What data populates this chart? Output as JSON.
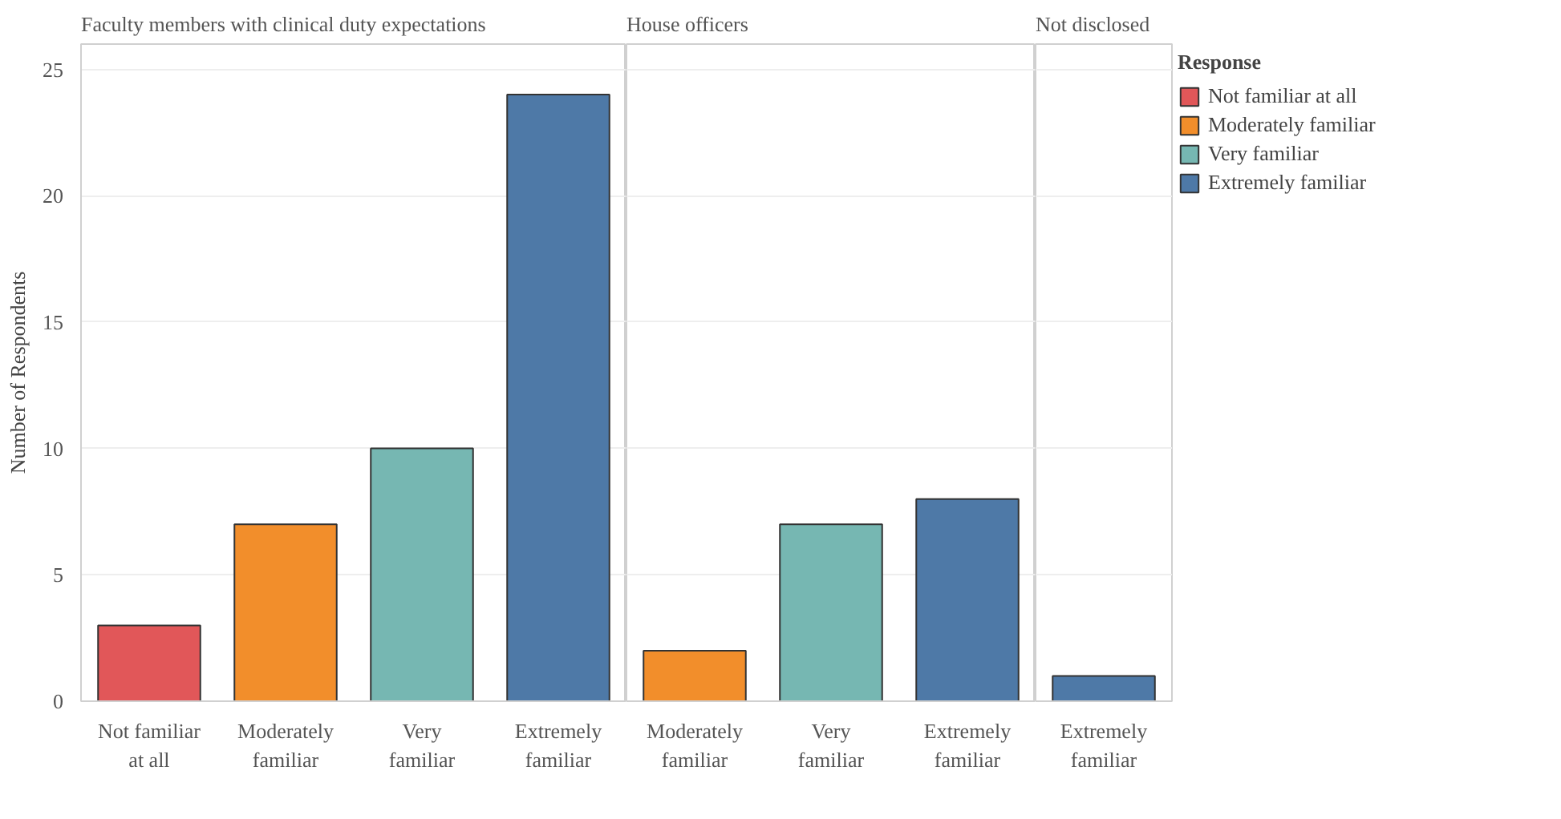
{
  "chart_data": [
    {
      "type": "bar",
      "title": "Faculty members with clinical duty expectations",
      "ylabel": "Number of Respondents",
      "categories": [
        "Not familiar at all",
        "Moderately familiar",
        "Very familiar",
        "Extremely familiar"
      ],
      "values": [
        3,
        7,
        10,
        24
      ],
      "colors": [
        "#e15759",
        "#f28e2b",
        "#76b7b2",
        "#4e79a7"
      ],
      "ylim": [
        0,
        26
      ],
      "yticks": [
        0,
        5,
        10,
        15,
        20,
        25
      ],
      "grid": "y"
    },
    {
      "type": "bar",
      "title": "House officers",
      "categories": [
        "Moderately familiar",
        "Very familiar",
        "Extremely familiar"
      ],
      "values": [
        2,
        7,
        8
      ],
      "colors": [
        "#f28e2b",
        "#76b7b2",
        "#4e79a7"
      ],
      "ylim": [
        0,
        26
      ],
      "yticks": [
        0,
        5,
        10,
        15,
        20,
        25
      ],
      "grid": "y",
      "tick_labels": "x"
    },
    {
      "type": "bar",
      "title": "Not disclosed",
      "categories": [
        "Extremely familiar"
      ],
      "legend_title": "Response",
      "legend": "right",
      "series": [
        {
          "name": "Not familiar at all",
          "color": "#e15759",
          "values": [
            null
          ]
        },
        {
          "name": "Moderately familiar",
          "color": "#f28e2b",
          "values": [
            null
          ]
        },
        {
          "name": "Very familiar",
          "color": "#76b7b2",
          "values": [
            null
          ]
        },
        {
          "name": "Extremely familiar",
          "color": "#4e79a7",
          "values": [
            1
          ]
        }
      ],
      "ylim": [
        0,
        26
      ],
      "yticks": [
        0,
        5,
        10,
        15,
        20,
        25
      ],
      "grid": "y",
      "tick_labels": "x"
    }
  ]
}
